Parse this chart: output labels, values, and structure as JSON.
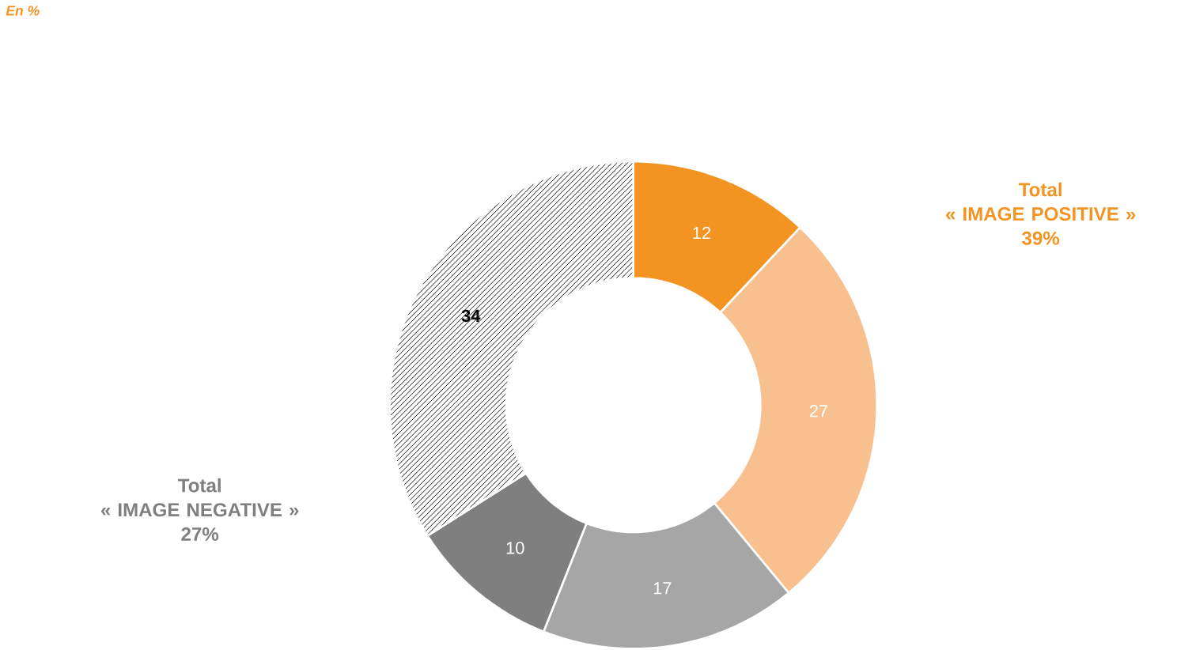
{
  "chart_data": {
    "type": "donut",
    "subtitle": "En %",
    "categories": [
      null,
      null,
      null,
      null,
      null
    ],
    "values": [
      12,
      27,
      17,
      10,
      34
    ],
    "colors": [
      "#f39322",
      "#f9c08f",
      "#a6a6a6",
      "#7f7f7f",
      "#ffffff"
    ],
    "data_labels": true,
    "annotations": [
      "Total\n« IMAGE POSITIVE »\n39%",
      "Total\n« IMAGE NEGATIVE »\n27%"
    ]
  }
}
